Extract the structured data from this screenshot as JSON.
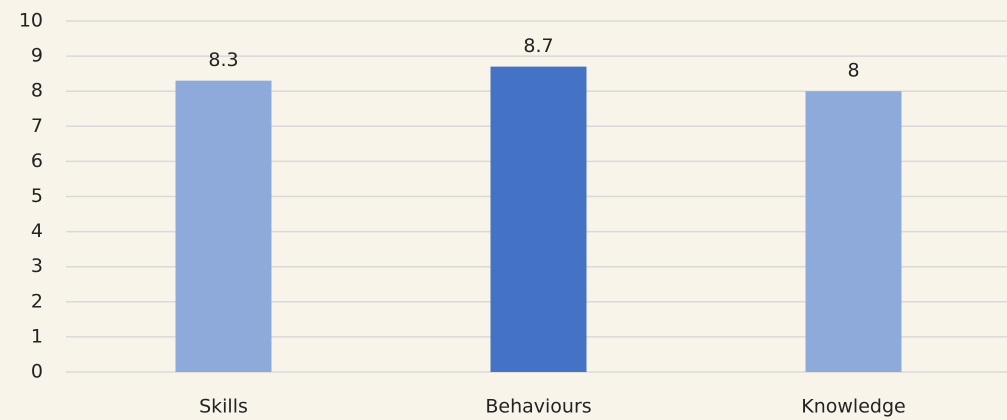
{
  "chart_data": {
    "type": "bar",
    "categories": [
      "Skills",
      "Behaviours",
      "Knowledge"
    ],
    "values": [
      8.3,
      8.7,
      8
    ],
    "colors": [
      "#8eaadb",
      "#4472c4",
      "#8eaadb"
    ],
    "ylim": [
      0,
      10
    ],
    "yticks": [
      0,
      1,
      2,
      3,
      4,
      5,
      6,
      7,
      8,
      9,
      10
    ],
    "grid": true
  }
}
